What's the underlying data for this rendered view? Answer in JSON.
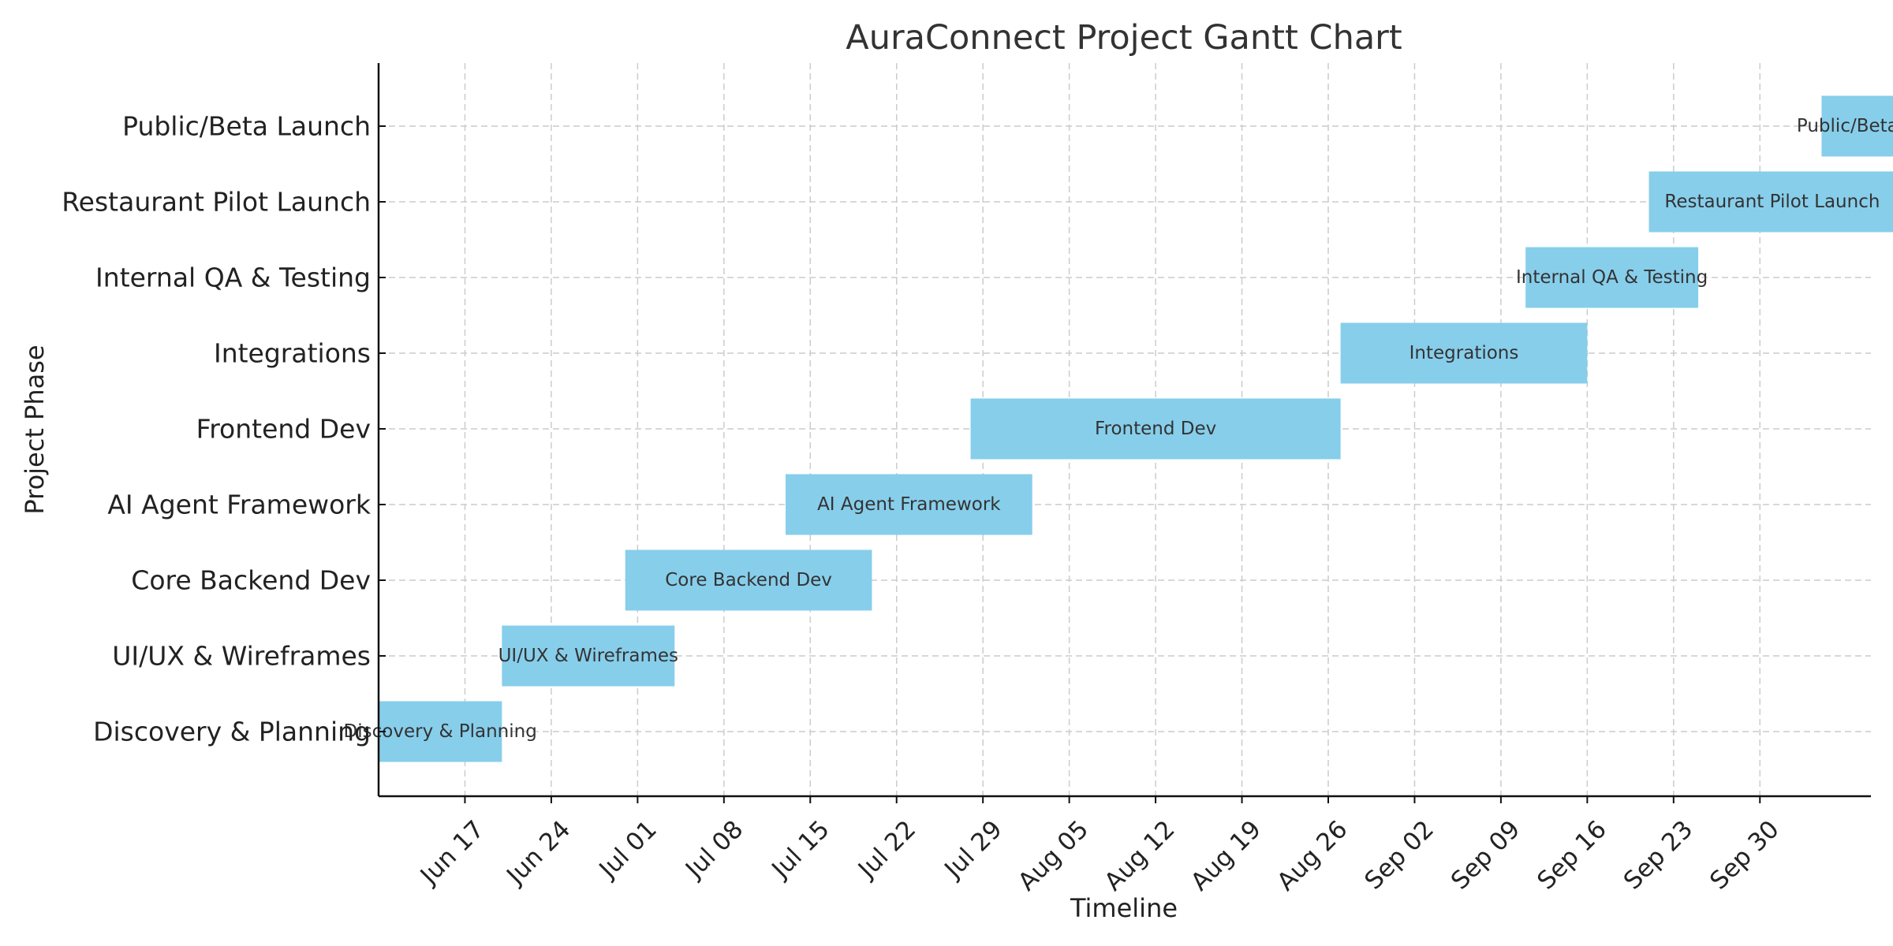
{
  "chart_data": {
    "type": "gantt",
    "title": "AuraConnect Project Gantt Chart",
    "xlabel": "Timeline",
    "ylabel": "Project Phase",
    "grid": true,
    "legend": "none",
    "bar_color": "#87ceeb",
    "xlim": [
      "2024-06-10",
      "2024-10-09"
    ],
    "x_ticks": [
      {
        "date": "2024-06-17",
        "label": "Jun 17"
      },
      {
        "date": "2024-06-24",
        "label": "Jun 24"
      },
      {
        "date": "2024-07-01",
        "label": "Jul 01"
      },
      {
        "date": "2024-07-08",
        "label": "Jul 08"
      },
      {
        "date": "2024-07-15",
        "label": "Jul 15"
      },
      {
        "date": "2024-07-22",
        "label": "Jul 22"
      },
      {
        "date": "2024-07-29",
        "label": "Jul 29"
      },
      {
        "date": "2024-08-05",
        "label": "Aug 05"
      },
      {
        "date": "2024-08-12",
        "label": "Aug 12"
      },
      {
        "date": "2024-08-19",
        "label": "Aug 19"
      },
      {
        "date": "2024-08-26",
        "label": "Aug 26"
      },
      {
        "date": "2024-09-02",
        "label": "Sep 02"
      },
      {
        "date": "2024-09-09",
        "label": "Sep 09"
      },
      {
        "date": "2024-09-16",
        "label": "Sep 16"
      },
      {
        "date": "2024-09-23",
        "label": "Sep 23"
      },
      {
        "date": "2024-09-30",
        "label": "Sep 30"
      }
    ],
    "tasks": [
      {
        "name": "Discovery & Planning",
        "start": "2024-06-10",
        "end": "2024-06-20"
      },
      {
        "name": "UI/UX & Wireframes",
        "start": "2024-06-20",
        "end": "2024-07-04"
      },
      {
        "name": "Core Backend Dev",
        "start": "2024-06-30",
        "end": "2024-07-20"
      },
      {
        "name": "AI Agent Framework",
        "start": "2024-07-13",
        "end": "2024-08-02"
      },
      {
        "name": "Frontend Dev",
        "start": "2024-07-28",
        "end": "2024-08-27"
      },
      {
        "name": "Integrations",
        "start": "2024-08-27",
        "end": "2024-09-16"
      },
      {
        "name": "Internal QA & Testing",
        "start": "2024-09-11",
        "end": "2024-09-25"
      },
      {
        "name": "Restaurant Pilot Launch",
        "start": "2024-09-21",
        "end": "2024-10-11"
      },
      {
        "name": "Public/Beta Launch",
        "start": "2024-10-05",
        "end": "2024-10-15"
      }
    ]
  }
}
